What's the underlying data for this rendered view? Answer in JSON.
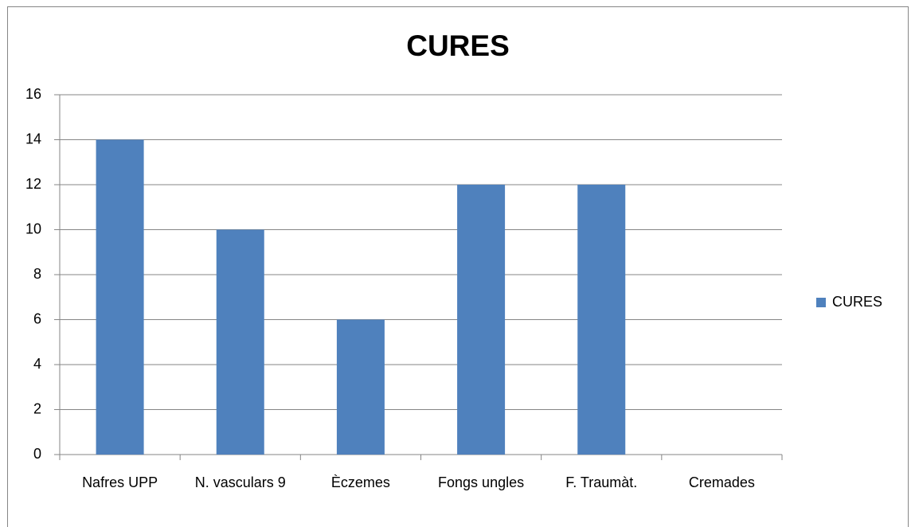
{
  "chart_data": {
    "type": "bar",
    "title": "CURES",
    "categories": [
      "Nafres UPP",
      "N. vasculars 9",
      "Èczemes",
      "Fongs ungles",
      "F. Traumàt.",
      "Cremades"
    ],
    "series": [
      {
        "name": "CURES",
        "color": "#4f81bd",
        "values": [
          14,
          10,
          6,
          12,
          12,
          0
        ]
      }
    ],
    "ylim": [
      0,
      16
    ],
    "yticks": [
      0,
      2,
      4,
      6,
      8,
      10,
      12,
      14,
      16
    ],
    "grid": true,
    "legend": "right"
  }
}
